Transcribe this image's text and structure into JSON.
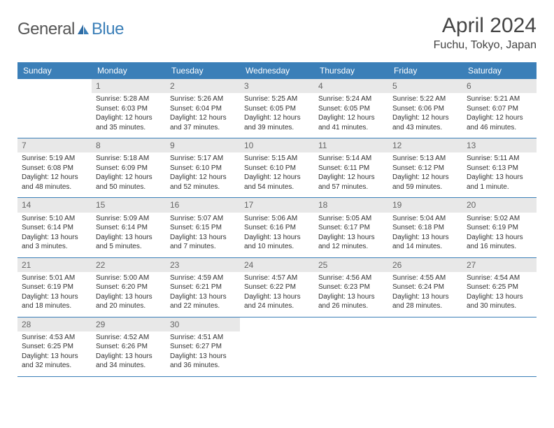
{
  "logo": {
    "part1": "General",
    "part2": "Blue"
  },
  "title": "April 2024",
  "location": "Fuchu, Tokyo, Japan",
  "colors": {
    "header_bg": "#3b7fb8",
    "header_fg": "#ffffff",
    "daynum_bg": "#e8e8e8",
    "text": "#333333",
    "border": "#3b7fb8"
  },
  "weekdays": [
    "Sunday",
    "Monday",
    "Tuesday",
    "Wednesday",
    "Thursday",
    "Friday",
    "Saturday"
  ],
  "days": [
    {
      "n": "",
      "sr": "",
      "ss": "",
      "dl1": "",
      "dl2": "",
      "empty": true
    },
    {
      "n": "1",
      "sr": "Sunrise: 5:28 AM",
      "ss": "Sunset: 6:03 PM",
      "dl1": "Daylight: 12 hours",
      "dl2": "and 35 minutes."
    },
    {
      "n": "2",
      "sr": "Sunrise: 5:26 AM",
      "ss": "Sunset: 6:04 PM",
      "dl1": "Daylight: 12 hours",
      "dl2": "and 37 minutes."
    },
    {
      "n": "3",
      "sr": "Sunrise: 5:25 AM",
      "ss": "Sunset: 6:05 PM",
      "dl1": "Daylight: 12 hours",
      "dl2": "and 39 minutes."
    },
    {
      "n": "4",
      "sr": "Sunrise: 5:24 AM",
      "ss": "Sunset: 6:05 PM",
      "dl1": "Daylight: 12 hours",
      "dl2": "and 41 minutes."
    },
    {
      "n": "5",
      "sr": "Sunrise: 5:22 AM",
      "ss": "Sunset: 6:06 PM",
      "dl1": "Daylight: 12 hours",
      "dl2": "and 43 minutes."
    },
    {
      "n": "6",
      "sr": "Sunrise: 5:21 AM",
      "ss": "Sunset: 6:07 PM",
      "dl1": "Daylight: 12 hours",
      "dl2": "and 46 minutes."
    },
    {
      "n": "7",
      "sr": "Sunrise: 5:19 AM",
      "ss": "Sunset: 6:08 PM",
      "dl1": "Daylight: 12 hours",
      "dl2": "and 48 minutes."
    },
    {
      "n": "8",
      "sr": "Sunrise: 5:18 AM",
      "ss": "Sunset: 6:09 PM",
      "dl1": "Daylight: 12 hours",
      "dl2": "and 50 minutes."
    },
    {
      "n": "9",
      "sr": "Sunrise: 5:17 AM",
      "ss": "Sunset: 6:10 PM",
      "dl1": "Daylight: 12 hours",
      "dl2": "and 52 minutes."
    },
    {
      "n": "10",
      "sr": "Sunrise: 5:15 AM",
      "ss": "Sunset: 6:10 PM",
      "dl1": "Daylight: 12 hours",
      "dl2": "and 54 minutes."
    },
    {
      "n": "11",
      "sr": "Sunrise: 5:14 AM",
      "ss": "Sunset: 6:11 PM",
      "dl1": "Daylight: 12 hours",
      "dl2": "and 57 minutes."
    },
    {
      "n": "12",
      "sr": "Sunrise: 5:13 AM",
      "ss": "Sunset: 6:12 PM",
      "dl1": "Daylight: 12 hours",
      "dl2": "and 59 minutes."
    },
    {
      "n": "13",
      "sr": "Sunrise: 5:11 AM",
      "ss": "Sunset: 6:13 PM",
      "dl1": "Daylight: 13 hours",
      "dl2": "and 1 minute."
    },
    {
      "n": "14",
      "sr": "Sunrise: 5:10 AM",
      "ss": "Sunset: 6:14 PM",
      "dl1": "Daylight: 13 hours",
      "dl2": "and 3 minutes."
    },
    {
      "n": "15",
      "sr": "Sunrise: 5:09 AM",
      "ss": "Sunset: 6:14 PM",
      "dl1": "Daylight: 13 hours",
      "dl2": "and 5 minutes."
    },
    {
      "n": "16",
      "sr": "Sunrise: 5:07 AM",
      "ss": "Sunset: 6:15 PM",
      "dl1": "Daylight: 13 hours",
      "dl2": "and 7 minutes."
    },
    {
      "n": "17",
      "sr": "Sunrise: 5:06 AM",
      "ss": "Sunset: 6:16 PM",
      "dl1": "Daylight: 13 hours",
      "dl2": "and 10 minutes."
    },
    {
      "n": "18",
      "sr": "Sunrise: 5:05 AM",
      "ss": "Sunset: 6:17 PM",
      "dl1": "Daylight: 13 hours",
      "dl2": "and 12 minutes."
    },
    {
      "n": "19",
      "sr": "Sunrise: 5:04 AM",
      "ss": "Sunset: 6:18 PM",
      "dl1": "Daylight: 13 hours",
      "dl2": "and 14 minutes."
    },
    {
      "n": "20",
      "sr": "Sunrise: 5:02 AM",
      "ss": "Sunset: 6:19 PM",
      "dl1": "Daylight: 13 hours",
      "dl2": "and 16 minutes."
    },
    {
      "n": "21",
      "sr": "Sunrise: 5:01 AM",
      "ss": "Sunset: 6:19 PM",
      "dl1": "Daylight: 13 hours",
      "dl2": "and 18 minutes."
    },
    {
      "n": "22",
      "sr": "Sunrise: 5:00 AM",
      "ss": "Sunset: 6:20 PM",
      "dl1": "Daylight: 13 hours",
      "dl2": "and 20 minutes."
    },
    {
      "n": "23",
      "sr": "Sunrise: 4:59 AM",
      "ss": "Sunset: 6:21 PM",
      "dl1": "Daylight: 13 hours",
      "dl2": "and 22 minutes."
    },
    {
      "n": "24",
      "sr": "Sunrise: 4:57 AM",
      "ss": "Sunset: 6:22 PM",
      "dl1": "Daylight: 13 hours",
      "dl2": "and 24 minutes."
    },
    {
      "n": "25",
      "sr": "Sunrise: 4:56 AM",
      "ss": "Sunset: 6:23 PM",
      "dl1": "Daylight: 13 hours",
      "dl2": "and 26 minutes."
    },
    {
      "n": "26",
      "sr": "Sunrise: 4:55 AM",
      "ss": "Sunset: 6:24 PM",
      "dl1": "Daylight: 13 hours",
      "dl2": "and 28 minutes."
    },
    {
      "n": "27",
      "sr": "Sunrise: 4:54 AM",
      "ss": "Sunset: 6:25 PM",
      "dl1": "Daylight: 13 hours",
      "dl2": "and 30 minutes."
    },
    {
      "n": "28",
      "sr": "Sunrise: 4:53 AM",
      "ss": "Sunset: 6:25 PM",
      "dl1": "Daylight: 13 hours",
      "dl2": "and 32 minutes."
    },
    {
      "n": "29",
      "sr": "Sunrise: 4:52 AM",
      "ss": "Sunset: 6:26 PM",
      "dl1": "Daylight: 13 hours",
      "dl2": "and 34 minutes."
    },
    {
      "n": "30",
      "sr": "Sunrise: 4:51 AM",
      "ss": "Sunset: 6:27 PM",
      "dl1": "Daylight: 13 hours",
      "dl2": "and 36 minutes."
    },
    {
      "n": "",
      "sr": "",
      "ss": "",
      "dl1": "",
      "dl2": "",
      "empty": true
    },
    {
      "n": "",
      "sr": "",
      "ss": "",
      "dl1": "",
      "dl2": "",
      "empty": true
    },
    {
      "n": "",
      "sr": "",
      "ss": "",
      "dl1": "",
      "dl2": "",
      "empty": true
    },
    {
      "n": "",
      "sr": "",
      "ss": "",
      "dl1": "",
      "dl2": "",
      "empty": true
    }
  ]
}
